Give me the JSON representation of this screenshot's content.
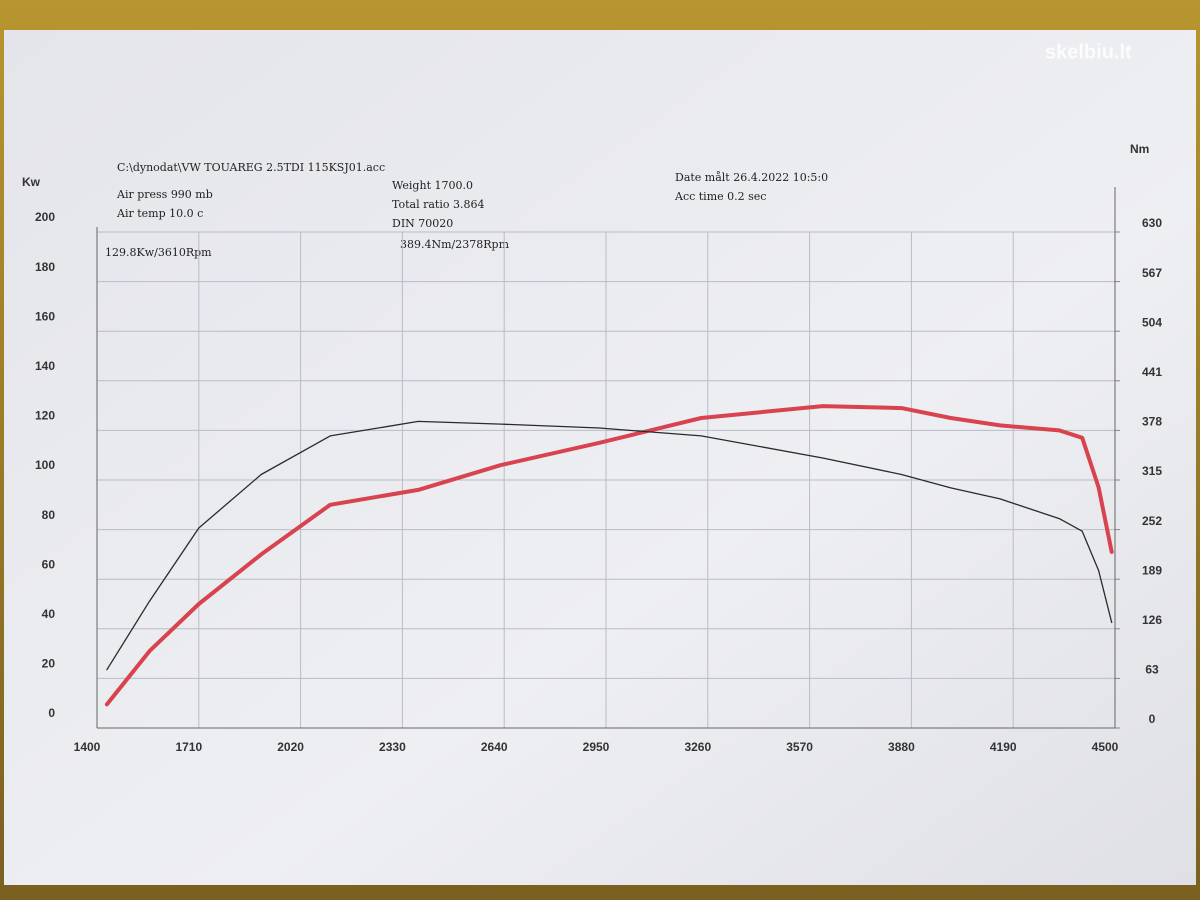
{
  "chart_data": {
    "type": "line",
    "title": "C:\\dynodat\\VW TOUAREG 2.5TDI 115KSJ01.acc",
    "annotations": [
      "Air press  990 mb",
      "Air temp  10.0 c",
      "Weight  1700.0",
      "Total ratio 3.864",
      "DIN 70020",
      "Date målt 26.4.2022 10:5:0",
      "Acc time  0.2 sec",
      "129.8Kw/3610Rpm",
      "389.4Nm/2378Rpm"
    ],
    "watermark": "skelbiu.lt",
    "y_label": "Kw",
    "y2_label": "Nm",
    "x": [
      1430,
      1560,
      1710,
      1900,
      2110,
      2378,
      2630,
      2930,
      3240,
      3610,
      3850,
      4000,
      4150,
      4330,
      4400,
      4450,
      4490
    ],
    "series": [
      {
        "color": "#d8434f",
        "values": [
          9.5,
          31,
          50,
          70,
          90,
          96,
          106,
          115,
          125,
          129.8,
          129,
          125,
          122,
          120,
          117,
          97,
          71
        ]
      },
      {
        "color": "#2a2a2a",
        "axis": "y2",
        "values": [
          74,
          161,
          254,
          322,
          371,
          389.4,
          386,
          381,
          371,
          343,
          322,
          305,
          291,
          266,
          250,
          200,
          134
        ]
      }
    ],
    "xlim": [
      1400,
      4500
    ],
    "xticks": [
      1400,
      1710,
      2020,
      2330,
      2640,
      2950,
      3260,
      3570,
      3880,
      4190,
      4500
    ],
    "ylim": [
      0,
      200
    ],
    "yticks": [
      0,
      20,
      40,
      60,
      80,
      100,
      120,
      140,
      160,
      180,
      200
    ],
    "y2lim": [
      0,
      630
    ],
    "y2ticks": [
      0,
      63,
      126,
      189,
      252,
      315,
      378,
      441,
      504,
      567,
      630
    ],
    "grid": true
  }
}
